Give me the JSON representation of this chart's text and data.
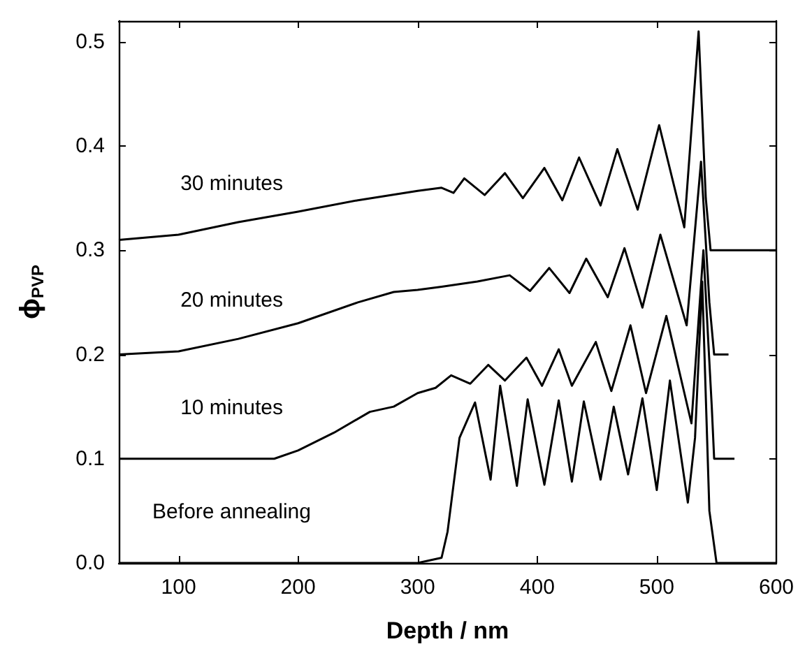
{
  "chart_data": {
    "type": "line",
    "xlabel": "Depth / nm",
    "ylabel": "ϕ$_{PVP}$",
    "xlim": [
      50,
      600
    ],
    "ylim": [
      0,
      0.52
    ],
    "xticks": [
      100,
      200,
      300,
      400,
      500,
      600
    ],
    "yticks": [
      {
        "value": 0,
        "label": "0.0"
      },
      {
        "value": 0.1,
        "label": "0.1"
      },
      {
        "value": 0.2,
        "label": "0.2"
      },
      {
        "value": 0.3,
        "label": "0.3"
      },
      {
        "value": 0.4,
        "label": "0.4"
      },
      {
        "value": 0.5,
        "label": "0.5"
      }
    ],
    "grid": false,
    "marker": "none",
    "line_style": "solid",
    "series": [
      {
        "name": "Before annealing",
        "color": "#000000",
        "x": [
          50,
          100,
          150,
          200,
          250,
          300,
          320,
          325,
          335,
          348,
          361,
          369,
          383,
          392,
          406,
          418,
          429,
          439,
          453,
          464,
          476,
          488,
          500,
          511,
          526,
          532,
          538,
          544,
          550,
          600
        ],
        "values": [
          0,
          0,
          0,
          0,
          0,
          0,
          0.005,
          0.03,
          0.12,
          0.154,
          0.08,
          0.17,
          0.074,
          0.157,
          0.075,
          0.156,
          0.078,
          0.155,
          0.08,
          0.15,
          0.085,
          0.158,
          0.07,
          0.175,
          0.058,
          0.12,
          0.27,
          0.05,
          0,
          0
        ]
      },
      {
        "name": "10 minutes",
        "color": "#000000",
        "x": [
          50,
          100,
          150,
          180,
          200,
          230,
          260,
          280,
          300,
          315,
          328,
          344,
          359,
          373,
          391,
          404,
          418,
          429,
          449,
          462,
          478,
          491,
          508,
          529,
          539,
          546,
          548,
          565
        ],
        "values": [
          0.1,
          0.1,
          0.1,
          0.1,
          0.108,
          0.125,
          0.145,
          0.15,
          0.163,
          0.168,
          0.18,
          0.172,
          0.19,
          0.175,
          0.197,
          0.17,
          0.205,
          0.17,
          0.212,
          0.165,
          0.228,
          0.163,
          0.237,
          0.134,
          0.3,
          0.15,
          0.1,
          0.1
        ]
      },
      {
        "name": "20 minutes",
        "color": "#000000",
        "x": [
          50,
          100,
          150,
          200,
          250,
          280,
          300,
          320,
          350,
          377,
          394,
          410,
          427,
          441,
          459,
          473,
          488,
          503,
          525,
          537,
          544,
          548,
          560
        ],
        "values": [
          0.2,
          0.203,
          0.215,
          0.23,
          0.25,
          0.26,
          0.262,
          0.265,
          0.27,
          0.276,
          0.261,
          0.283,
          0.259,
          0.292,
          0.255,
          0.302,
          0.245,
          0.315,
          0.228,
          0.385,
          0.25,
          0.2,
          0.2
        ]
      },
      {
        "name": "30 minutes",
        "color": "#000000",
        "x": [
          50,
          100,
          150,
          200,
          250,
          300,
          320,
          330,
          339,
          356,
          373,
          388,
          406,
          421,
          435,
          453,
          467,
          484,
          502,
          523,
          535,
          541,
          545,
          600
        ],
        "values": [
          0.31,
          0.315,
          0.327,
          0.337,
          0.348,
          0.357,
          0.36,
          0.355,
          0.369,
          0.353,
          0.374,
          0.35,
          0.379,
          0.348,
          0.389,
          0.343,
          0.397,
          0.339,
          0.42,
          0.322,
          0.51,
          0.35,
          0.3,
          0.3
        ]
      }
    ]
  }
}
